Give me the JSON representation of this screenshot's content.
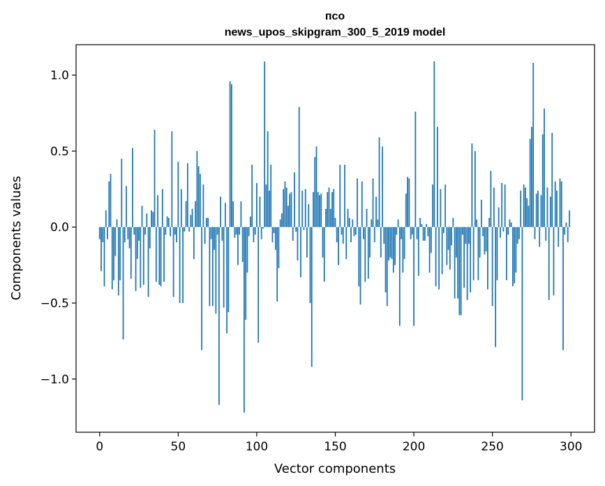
{
  "chart_data": {
    "type": "bar",
    "title": "псо",
    "subtitle": "news_upos_skipgram_300_5_2019 model",
    "xlabel": "Vector components",
    "ylabel": "Components values",
    "xlim": [
      -15,
      315
    ],
    "ylim": [
      -1.35,
      1.2
    ],
    "xticks": [
      0,
      50,
      100,
      150,
      200,
      250,
      300
    ],
    "xtick_labels": [
      "0",
      "50",
      "100",
      "150",
      "200",
      "250",
      "300"
    ],
    "yticks": [
      -1.0,
      -0.5,
      0.0,
      0.5,
      1.0
    ],
    "ytick_labels": [
      "−1.0",
      "−0.5",
      "0.0",
      "0.5",
      "1.0"
    ],
    "bar_color": "#1f77b4",
    "grid": false,
    "values": [
      -0.08,
      -0.29,
      -0.1,
      -0.39,
      0.11,
      -0.08,
      0.3,
      0.35,
      -0.41,
      -0.35,
      -0.19,
      0.05,
      -0.45,
      -0.35,
      0.45,
      -0.74,
      -0.1,
      0.27,
      -0.08,
      -0.14,
      -0.34,
      0.52,
      -0.05,
      -0.42,
      -0.21,
      -0.09,
      -0.4,
      0.14,
      -0.38,
      -0.05,
      0.09,
      -0.46,
      -0.14,
      0.11,
      0.1,
      0.64,
      -0.36,
      0.21,
      -0.38,
      -0.39,
      0.25,
      -0.36,
      -0.05,
      0.07,
      0.06,
      -0.06,
      0.63,
      -0.46,
      -0.05,
      -0.1,
      0.43,
      -0.5,
      0.25,
      -0.5,
      -0.03,
      0.17,
      0.42,
      -0.03,
      0.08,
      0.12,
      -0.21,
      0.17,
      0.5,
      0.4,
      0.35,
      -0.81,
      0.28,
      -0.11,
      0.06,
      0.06,
      -0.52,
      -0.08,
      -0.52,
      -0.15,
      -0.57,
      -0.05,
      -1.17,
      0.2,
      -0.09,
      -0.53,
      0.16,
      -0.7,
      -0.56,
      0.96,
      0.94,
      0.17,
      -0.07,
      -0.05,
      -0.25,
      -0.05,
      0.17,
      -0.23,
      -1.22,
      -0.61,
      -0.3,
      -0.06,
      0.07,
      0.41,
      -0.1,
      -0.05,
      0.29,
      -0.76,
      0.2,
      -0.08,
      -0.01,
      1.09,
      0.28,
      0.63,
      0.24,
      0.41,
      -0.1,
      -0.04,
      -0.15,
      -0.49,
      -0.27,
      0.05,
      0.09,
      0.25,
      0.3,
      0.26,
      0.14,
      0.22,
      0.23,
      -0.09,
      0.36,
      -0.03,
      -0.22,
      0.79,
      -0.33,
      0.24,
      -0.02,
      0.25,
      -0.2,
      0.15,
      -0.5,
      -0.92,
      0.23,
      0.46,
      0.53,
      0.23,
      0.21,
      0.22,
      -0.2,
      -0.36,
      0.12,
      0.23,
      0.26,
      0.12,
      0.23,
      0.25,
      0.06,
      -0.1,
      -0.25,
      0.41,
      -0.05,
      -0.11,
      0.41,
      -0.21,
      0.12,
      0.06,
      -0.1,
      0.05,
      -0.06,
      -0.05,
      0.32,
      -0.39,
      -0.51,
      0.3,
      -0.08,
      -0.36,
      0.12,
      -0.34,
      -0.2,
      0.05,
      0.32,
      -0.1,
      0.2,
      0.05,
      0.59,
      -0.2,
      0.53,
      -0.11,
      -0.43,
      -0.52,
      -0.22,
      -0.2,
      -0.21,
      -0.3,
      -0.25,
      -0.05,
      0.05,
      -0.65,
      -0.08,
      -0.3,
      -0.21,
      0.22,
      0.33,
      0.32,
      -0.08,
      -0.05,
      -0.65,
      0.76,
      -0.08,
      -0.32,
      0.06,
      0.02,
      -0.09,
      -0.09,
      0.02,
      -0.06,
      -0.3,
      -0.17,
      0.28,
      1.09,
      -0.39,
      0.66,
      -0.41,
      0.25,
      -0.31,
      -0.04,
      0.28,
      -0.25,
      -0.15,
      -0.28,
      -0.12,
      0.06,
      -0.47,
      -0.2,
      -0.47,
      -0.58,
      -0.58,
      -0.05,
      -0.4,
      -0.11,
      -0.48,
      -0.11,
      -0.43,
      0.55,
      -0.35,
      0.5,
      0.05,
      -0.35,
      -0.2,
      0.18,
      -0.06,
      -0.18,
      -0.16,
      -0.41,
      0.06,
      0.37,
      -0.52,
      0.26,
      -0.79,
      -0.35,
      0.13,
      -0.07,
      0.29,
      -0.03,
      0.28,
      -0.35,
      -0.05,
      0.05,
      0.03,
      -0.39,
      -0.37,
      -0.3,
      -0.11,
      -0.08,
      0.24,
      -1.14,
      0.28,
      0.26,
      0.19,
      0.14,
      0.58,
      0.66,
      1.08,
      -0.08,
      0.22,
      0.24,
      -0.13,
      0.21,
      0.61,
      0.78,
      -0.09,
      0.26,
      -0.48,
      0.2,
      0.62,
      -0.45,
      0.3,
      0.24,
      -0.13,
      0.32,
      0.3,
      -0.81,
      -0.05,
      0.03,
      -0.1,
      0.11
    ]
  }
}
